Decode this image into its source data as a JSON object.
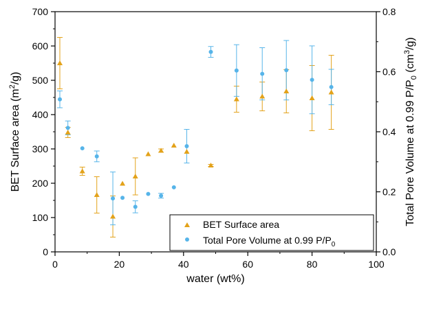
{
  "chart_data": {
    "type": "scatter",
    "title": "",
    "xlabel": "water (wt%)",
    "ylabel_left": {
      "main": "BET Surface area (m",
      "sup": "2",
      "tail": "/g)"
    },
    "ylabel_right": {
      "main": "Total Pore Volume at 0.99 P/P",
      "sub": "0",
      "mid": " (cm",
      "sup": "3",
      "tail": "/g)"
    },
    "xlim": [
      0,
      100
    ],
    "ylim_left": [
      0,
      700
    ],
    "ylim_right": [
      0,
      0.8
    ],
    "x_ticks": [
      "0",
      "20",
      "40",
      "60",
      "80",
      "100"
    ],
    "y_left_ticks": [
      "0",
      "100",
      "200",
      "300",
      "400",
      "500",
      "600",
      "700"
    ],
    "y_right_ticks": [
      "0.0",
      "0.2",
      "0.4",
      "0.6",
      "0.8"
    ],
    "grid": false,
    "legend_position": "bottom-right",
    "series": [
      {
        "name": "BET Surface area",
        "axis": "left",
        "marker": "triangle",
        "color": "#E3A21A",
        "points": [
          {
            "x": 1.5,
            "y": 550,
            "err": 75
          },
          {
            "x": 4,
            "y": 348,
            "err": 15
          },
          {
            "x": 8.5,
            "y": 235,
            "err": 12
          },
          {
            "x": 13,
            "y": 166,
            "err": 53
          },
          {
            "x": 18,
            "y": 103,
            "err": 60
          },
          {
            "x": 21,
            "y": 199,
            "err": 0
          },
          {
            "x": 25,
            "y": 220,
            "err": 54
          },
          {
            "x": 29,
            "y": 285,
            "err": 0
          },
          {
            "x": 33,
            "y": 295,
            "err": 5
          },
          {
            "x": 37,
            "y": 310,
            "err": 0
          },
          {
            "x": 41,
            "y": 292,
            "err": 0
          },
          {
            "x": 48.5,
            "y": 252,
            "err": 3
          },
          {
            "x": 56.5,
            "y": 445,
            "err": 38
          },
          {
            "x": 64.5,
            "y": 453,
            "err": 42
          },
          {
            "x": 72,
            "y": 468,
            "err": 63
          },
          {
            "x": 80,
            "y": 448,
            "err": 95
          },
          {
            "x": 86,
            "y": 465,
            "err": 108
          }
        ]
      },
      {
        "name": "Total Pore Volume at 0.99 P/P",
        "name_sub": "0",
        "axis": "right",
        "marker": "circle",
        "color": "#56B4E9",
        "points": [
          {
            "x": 1.5,
            "y": 0.508,
            "err": 0.028
          },
          {
            "x": 4,
            "y": 0.413,
            "err": 0.023
          },
          {
            "x": 8.5,
            "y": 0.345,
            "err": 0.0
          },
          {
            "x": 13,
            "y": 0.318,
            "err": 0.018
          },
          {
            "x": 18,
            "y": 0.178,
            "err": 0.088
          },
          {
            "x": 21,
            "y": 0.18,
            "err": 0.0
          },
          {
            "x": 25,
            "y": 0.15,
            "err": 0.02
          },
          {
            "x": 29,
            "y": 0.193,
            "err": 0.0
          },
          {
            "x": 33,
            "y": 0.187,
            "err": 0.008
          },
          {
            "x": 37,
            "y": 0.215,
            "err": 0.0
          },
          {
            "x": 41,
            "y": 0.352,
            "err": 0.056
          },
          {
            "x": 48.5,
            "y": 0.666,
            "err": 0.018
          },
          {
            "x": 56.5,
            "y": 0.604,
            "err": 0.086
          },
          {
            "x": 64.5,
            "y": 0.593,
            "err": 0.087
          },
          {
            "x": 72,
            "y": 0.605,
            "err": 0.099
          },
          {
            "x": 80,
            "y": 0.573,
            "err": 0.113
          },
          {
            "x": 86,
            "y": 0.549,
            "err": 0.059
          }
        ]
      }
    ]
  }
}
